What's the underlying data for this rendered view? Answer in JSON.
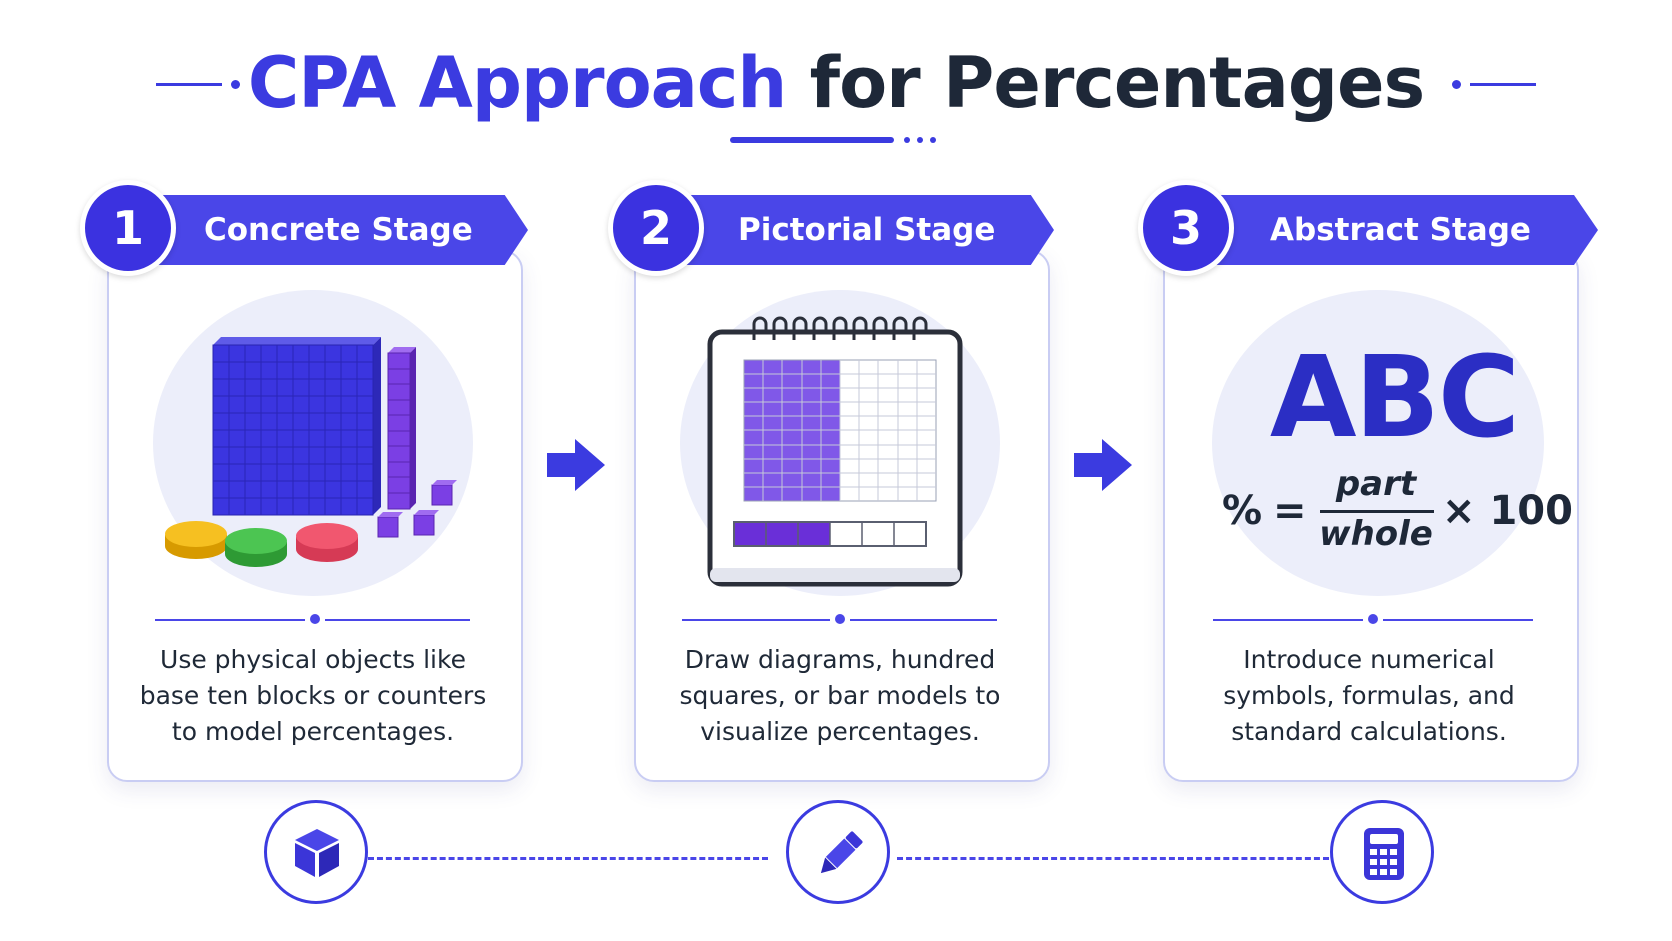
{
  "title": {
    "part1": "CPA Approach",
    "part2": "for Percentages"
  },
  "stages": [
    {
      "number": "1",
      "label": "Concrete Stage",
      "description": "Use physical objects like base ten blocks or counters to model percentages."
    },
    {
      "number": "2",
      "label": "Pictorial Stage",
      "description": "Draw diagrams, hundred squares, or bar models to visualize percentages."
    },
    {
      "number": "3",
      "label": "Abstract Stage",
      "description": "Introduce numerical symbols, formulas, and standard calculations."
    }
  ],
  "abstract": {
    "letters": "ABC",
    "formula_lhs": "%",
    "equals": "=",
    "numerator": "part",
    "denominator": "whole",
    "multiplier": "× 100"
  },
  "icons": [
    "cube-icon",
    "pencil-icon",
    "calculator-icon",
    "arrow-right-icon"
  ],
  "colors": {
    "accent": "#3b3be0",
    "purple": "#7b3fe4",
    "dark": "#1e2838"
  }
}
